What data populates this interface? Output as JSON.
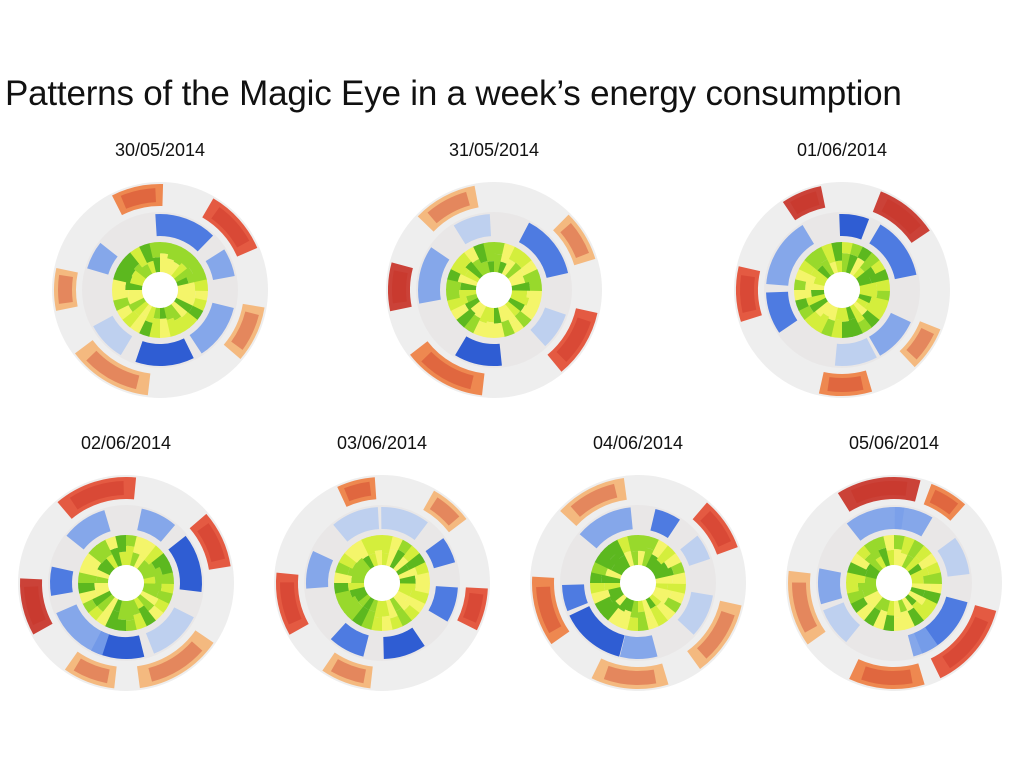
{
  "title": "Patterns of the Magic Eye in a week’s energy consumption",
  "colors": {
    "outer_ring_bg": "#eeeeee",
    "middle_ring_bg": "#e9e7e7",
    "inner_ring_bg": "#e6e4e4",
    "warm": [
      "#f5b270",
      "#ee7a3a",
      "#e3462a",
      "#c62a1f"
    ],
    "cool": [
      "#b9cdf0",
      "#7aa0ea",
      "#3d6fe0",
      "#1b4ed0"
    ],
    "green": [
      "#f4f56a",
      "#d4ee3c",
      "#98d92c",
      "#5cb81f"
    ]
  },
  "chart_data": [
    {
      "type": "radial-heatmap",
      "date": "30/05/2014",
      "seed": 11
    },
    {
      "type": "radial-heatmap",
      "date": "31/05/2014",
      "seed": 23
    },
    {
      "type": "radial-heatmap",
      "date": "01/06/2014",
      "seed": 37
    },
    {
      "type": "radial-heatmap",
      "date": "02/06/2014",
      "seed": 41
    },
    {
      "type": "radial-heatmap",
      "date": "03/06/2014",
      "seed": 53
    },
    {
      "type": "radial-heatmap",
      "date": "04/06/2014",
      "seed": 67
    },
    {
      "type": "radial-heatmap",
      "date": "05/06/2014",
      "seed": 79
    }
  ]
}
